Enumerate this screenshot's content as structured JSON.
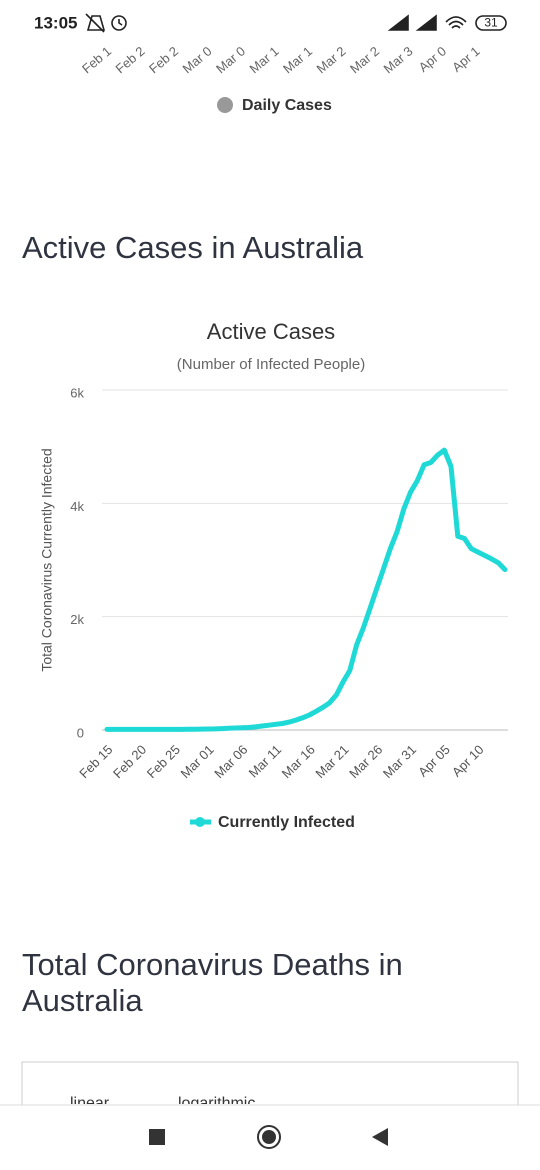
{
  "status_bar": {
    "time": "13:05",
    "battery": "31"
  },
  "previous_chart": {
    "x_labels": [
      "Feb 1",
      "Feb 2",
      "Feb 2",
      "Mar 0",
      "Mar 0",
      "Mar 1",
      "Mar 1",
      "Mar 2",
      "Mar 2",
      "Mar 3",
      "Apr 0",
      "Apr 1"
    ],
    "legend": "Daily Cases",
    "legend_color": "#999999"
  },
  "section_heading": "Active Cases in Australia",
  "chart_data": {
    "type": "line",
    "title": "Active Cases",
    "subtitle": "(Number of Infected People)",
    "y_label": "Total Coronavirus Currently Infected",
    "categories": [
      "Feb 15",
      null,
      null,
      null,
      null,
      "Feb 20",
      null,
      null,
      null,
      null,
      "Feb 25",
      null,
      null,
      null,
      null,
      "Mar 01",
      null,
      null,
      null,
      null,
      "Mar 06",
      null,
      null,
      null,
      null,
      "Mar 11",
      null,
      null,
      null,
      null,
      "Mar 16",
      null,
      null,
      null,
      null,
      "Mar 21",
      null,
      null,
      null,
      null,
      "Mar 26",
      null,
      null,
      null,
      null,
      "Mar 31",
      null,
      null,
      null,
      null,
      "Apr 05",
      null,
      null,
      null,
      null,
      "Apr 10",
      null,
      null,
      null,
      null
    ],
    "series": [
      {
        "name": "Currently Infected",
        "color": "#1fd9d6",
        "values": [
          10,
          10,
          10,
          10,
          10,
          10,
          10,
          10,
          10,
          11,
          11,
          11,
          12,
          13,
          15,
          17,
          20,
          25,
          30,
          35,
          40,
          45,
          55,
          70,
          85,
          100,
          115,
          140,
          175,
          215,
          265,
          330,
          400,
          480,
          620,
          850,
          1050,
          1500,
          1800,
          2150,
          2500,
          2850,
          3200,
          3500,
          3900,
          4200,
          4400,
          4680,
          4720,
          4850,
          4940,
          4650,
          3420,
          3380,
          3200,
          3140,
          3080,
          3020,
          2950,
          2830
        ]
      }
    ],
    "ylim": [
      0,
      6000
    ],
    "yticks": [
      0,
      {
        "value": 2000,
        "label": "2k"
      },
      {
        "value": 4000,
        "label": "4k"
      },
      {
        "value": 6000,
        "label": "6k"
      }
    ],
    "grid": true
  },
  "next_heading": "Total Coronavirus Deaths in Australia",
  "next_chart_tabs": [
    "linear",
    "logarithmic"
  ]
}
